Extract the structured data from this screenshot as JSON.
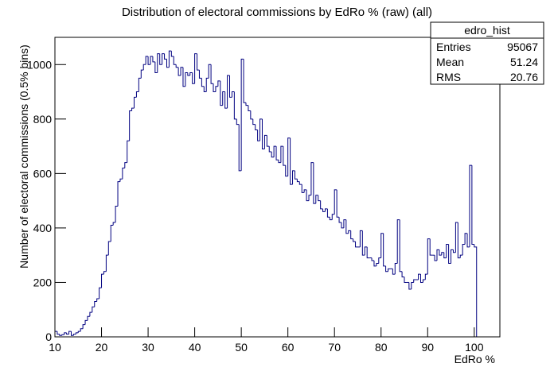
{
  "chart_data": {
    "type": "histogram",
    "title": "Distribution of electoral commissions by EdRo % (raw) (all)",
    "x_label": "EdRo %",
    "y_label": "Number of electoral commissions (0.5% bins)",
    "color": "#000080",
    "bins": [
      10,
      10.5,
      11,
      11.5,
      12,
      12.5,
      13,
      13.5,
      14,
      14.5,
      15,
      15.5,
      16,
      16.5,
      17,
      17.5,
      18,
      18.5,
      19,
      19.5,
      20,
      20.5,
      21,
      21.5,
      22,
      22.5,
      23,
      23.5,
      24,
      24.5,
      25,
      25.5,
      26,
      26.5,
      27,
      27.5,
      28,
      28.5,
      29,
      29.5,
      30,
      30.5,
      31,
      31.5,
      32,
      32.5,
      33,
      33.5,
      34,
      34.5,
      35,
      35.5,
      36,
      36.5,
      37,
      37.5,
      38,
      38.5,
      39,
      39.5,
      40,
      40.5,
      41,
      41.5,
      42,
      42.5,
      43,
      43.5,
      44,
      44.5,
      45,
      45.5,
      46,
      46.5,
      47,
      47.5,
      48,
      48.5,
      49,
      49.5,
      50,
      50.5,
      51,
      51.5,
      52,
      52.5,
      53,
      53.5,
      54,
      54.5,
      55,
      55.5,
      56,
      56.5,
      57,
      57.5,
      58,
      58.5,
      59,
      59.5,
      60,
      60.5,
      61,
      61.5,
      62,
      62.5,
      63,
      63.5,
      64,
      64.5,
      65,
      65.5,
      66,
      66.5,
      67,
      67.5,
      68,
      68.5,
      69,
      69.5,
      70,
      70.5,
      71,
      71.5,
      72,
      72.5,
      73,
      73.5,
      74,
      74.5,
      75,
      75.5,
      76,
      76.5,
      77,
      77.5,
      78,
      78.5,
      79,
      79.5,
      80,
      80.5,
      81,
      81.5,
      82,
      82.5,
      83,
      83.5,
      84,
      84.5,
      85,
      85.5,
      86,
      86.5,
      87,
      87.5,
      88,
      88.5,
      89,
      89.5,
      90,
      90.5,
      91,
      91.5,
      92,
      92.5,
      93,
      93.5,
      94,
      94.5,
      95,
      95.5,
      96,
      96.5,
      97,
      97.5,
      98,
      98.5,
      99,
      99.5,
      100,
      100.5
    ],
    "values": [
      20,
      10,
      5,
      8,
      15,
      10,
      20,
      5,
      10,
      15,
      20,
      30,
      45,
      60,
      75,
      90,
      110,
      130,
      140,
      180,
      230,
      240,
      300,
      350,
      410,
      420,
      480,
      570,
      580,
      620,
      640,
      720,
      830,
      840,
      880,
      900,
      950,
      980,
      1000,
      1030,
      1000,
      1030,
      1010,
      970,
      1040,
      1000,
      1040,
      1020,
      990,
      1050,
      1030,
      1000,
      990,
      960,
      990,
      920,
      970,
      960,
      970,
      930,
      1040,
      980,
      950,
      920,
      900,
      950,
      1000,
      930,
      900,
      920,
      940,
      850,
      900,
      840,
      960,
      880,
      900,
      800,
      780,
      610,
      1020,
      860,
      850,
      830,
      800,
      780,
      760,
      720,
      800,
      690,
      740,
      700,
      680,
      660,
      700,
      650,
      640,
      700,
      630,
      590,
      730,
      560,
      610,
      580,
      570,
      560,
      530,
      540,
      500,
      520,
      640,
      490,
      520,
      500,
      470,
      460,
      470,
      440,
      430,
      450,
      540,
      440,
      420,
      400,
      430,
      380,
      390,
      360,
      350,
      330,
      330,
      390,
      300,
      330,
      290,
      290,
      280,
      260,
      270,
      290,
      380,
      260,
      240,
      250,
      250,
      230,
      270,
      430,
      240,
      220,
      200,
      200,
      175,
      200,
      210,
      210,
      230,
      200,
      210,
      230,
      360,
      300,
      300,
      280,
      320,
      300,
      310,
      290,
      340,
      270,
      320,
      310,
      420,
      290,
      300,
      340,
      380,
      330,
      630,
      340,
      330
    ],
    "xlim": [
      10,
      105.5
    ],
    "ylim": [
      0,
      1100
    ],
    "xticks": [
      10,
      20,
      30,
      40,
      50,
      60,
      70,
      80,
      90,
      100
    ],
    "yticks": [
      0,
      200,
      400,
      600,
      800,
      1000
    ],
    "stats": {
      "title": "edro_hist",
      "rows": [
        [
          "Entries",
          95067
        ],
        [
          "Mean",
          51.24
        ],
        [
          "RMS",
          20.76
        ]
      ]
    }
  }
}
